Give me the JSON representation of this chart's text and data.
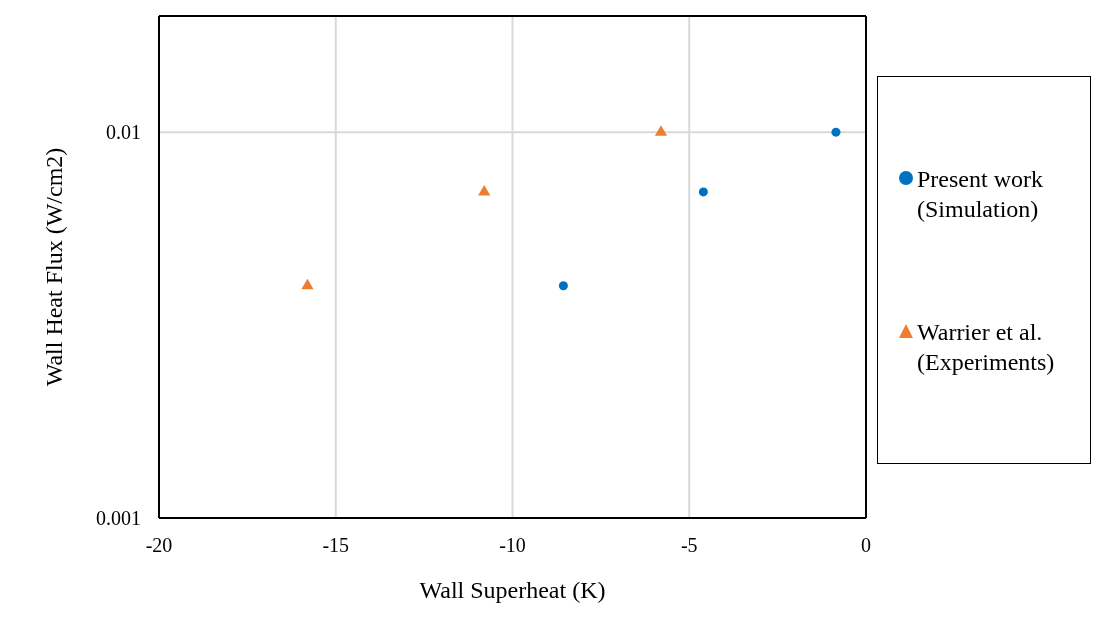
{
  "chart_data": {
    "type": "scatter",
    "xlabel": "Wall Superheat (K)",
    "ylabel": "Wall Heat Flux (W/cm2)",
    "xlim": [
      -20,
      0
    ],
    "xticks": [
      -20,
      -15,
      -10,
      -5,
      0
    ],
    "ylim": [
      0.001,
      0.02
    ],
    "yticks": [
      0.001,
      0.01
    ],
    "log": "y",
    "grid": true,
    "legend": "right",
    "series": [
      {
        "name": "Present work (Simulation)",
        "color": "#0070c0",
        "marker": "circle",
        "x": [
          -8.56,
          -4.6,
          -0.85
        ],
        "values": [
          0.004,
          0.007,
          0.01
        ]
      },
      {
        "name": "Warrier et al. (Experiments)",
        "color": "#ed7d31",
        "marker": "triangle",
        "x": [
          -15.8,
          -10.8,
          -5.8
        ],
        "values": [
          0.004,
          0.007,
          0.01
        ]
      }
    ]
  }
}
